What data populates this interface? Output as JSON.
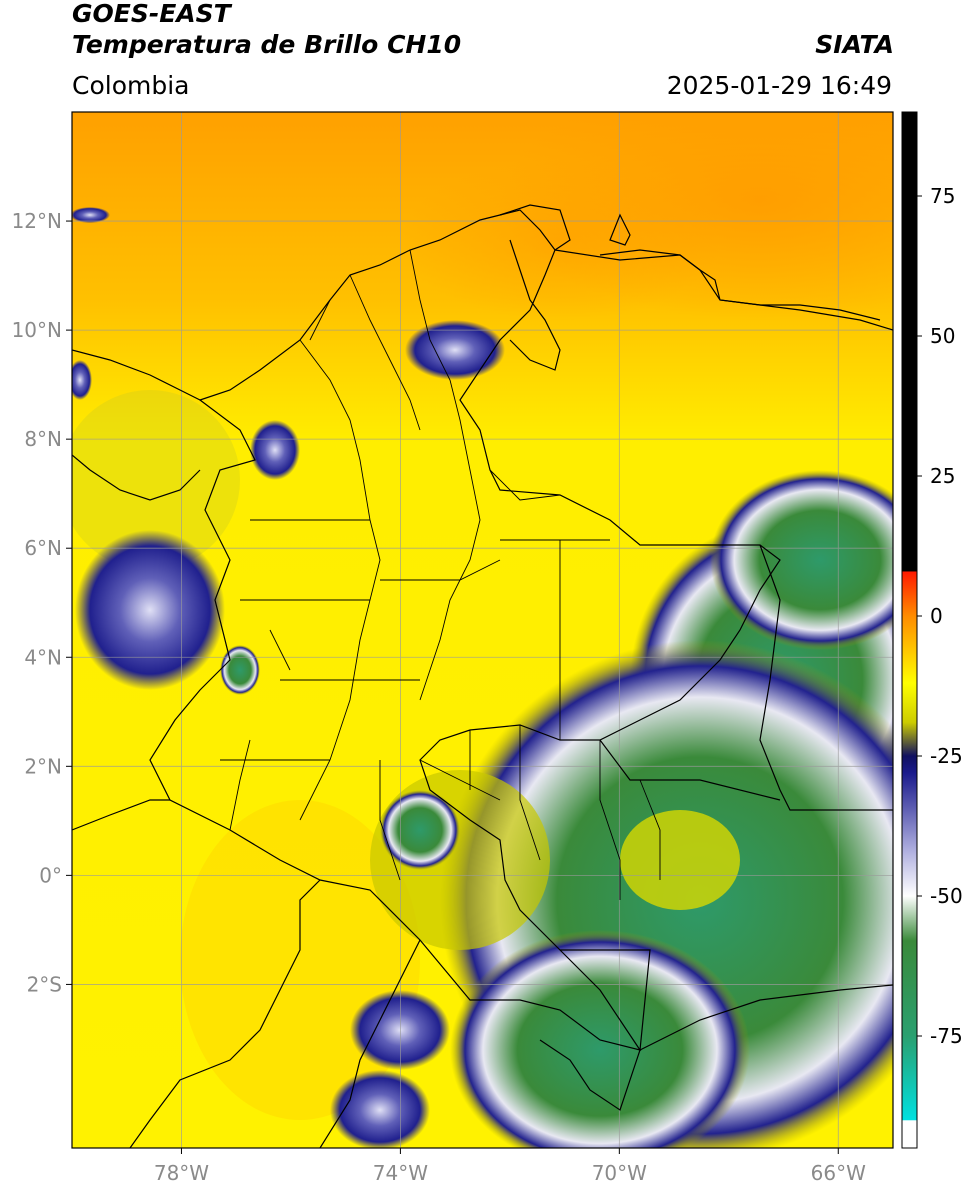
{
  "header": {
    "satellite": "GOES-EAST",
    "product": "Temperatura de Brillo CH10",
    "organization": "SIATA",
    "region": "Colombia",
    "datetime": "2025-01-29 16:49"
  },
  "map": {
    "lon_range": [
      -80,
      -65
    ],
    "lat_range": [
      -5,
      14
    ],
    "lat_ticks": [
      {
        "value": 12,
        "label": "12°N"
      },
      {
        "value": 10,
        "label": "10°N"
      },
      {
        "value": 8,
        "label": "8°N"
      },
      {
        "value": 6,
        "label": "6°N"
      },
      {
        "value": 4,
        "label": "4°N"
      },
      {
        "value": 2,
        "label": "2°N"
      },
      {
        "value": 0,
        "label": "0°"
      },
      {
        "value": -2,
        "label": "2°S"
      }
    ],
    "lon_ticks": [
      {
        "value": -78,
        "label": "78°W"
      },
      {
        "value": -74,
        "label": "74°W"
      },
      {
        "value": -70,
        "label": "70°W"
      },
      {
        "value": -66,
        "label": "66°W"
      }
    ],
    "gridlines": true
  },
  "colorbar": {
    "range": [
      -95,
      90
    ],
    "ticks": [
      {
        "value": 75,
        "label": "75"
      },
      {
        "value": 50,
        "label": "50"
      },
      {
        "value": 25,
        "label": "25"
      },
      {
        "value": 0,
        "label": "0"
      },
      {
        "value": -25,
        "label": "-25"
      },
      {
        "value": -50,
        "label": "-50"
      },
      {
        "value": -75,
        "label": "-75"
      }
    ],
    "stops": [
      {
        "value": 90,
        "color": "#000000"
      },
      {
        "value": 8,
        "color": "#000000"
      },
      {
        "value": 7.9,
        "color": "#ff1a00"
      },
      {
        "value": 0,
        "color": "#ff8c00"
      },
      {
        "value": -12,
        "color": "#ffff00"
      },
      {
        "value": -19,
        "color": "#cccc00"
      },
      {
        "value": -25,
        "color": "#101060"
      },
      {
        "value": -28,
        "color": "#1a1a8c"
      },
      {
        "value": -42,
        "color": "#b0b0e0"
      },
      {
        "value": -50,
        "color": "#ffffff"
      },
      {
        "value": -58,
        "color": "#3a8a3a"
      },
      {
        "value": -75,
        "color": "#2aa070"
      },
      {
        "value": -90,
        "color": "#00e0e0"
      },
      {
        "value": -90.1,
        "color": "#ffffff"
      },
      {
        "value": -95,
        "color": "#ffffff"
      }
    ]
  },
  "colors": {
    "background_warm": "#ffee00",
    "north_orange": "#ffa500",
    "convective_green": "#2e8b57",
    "convective_blue": "#1a1a8c"
  }
}
